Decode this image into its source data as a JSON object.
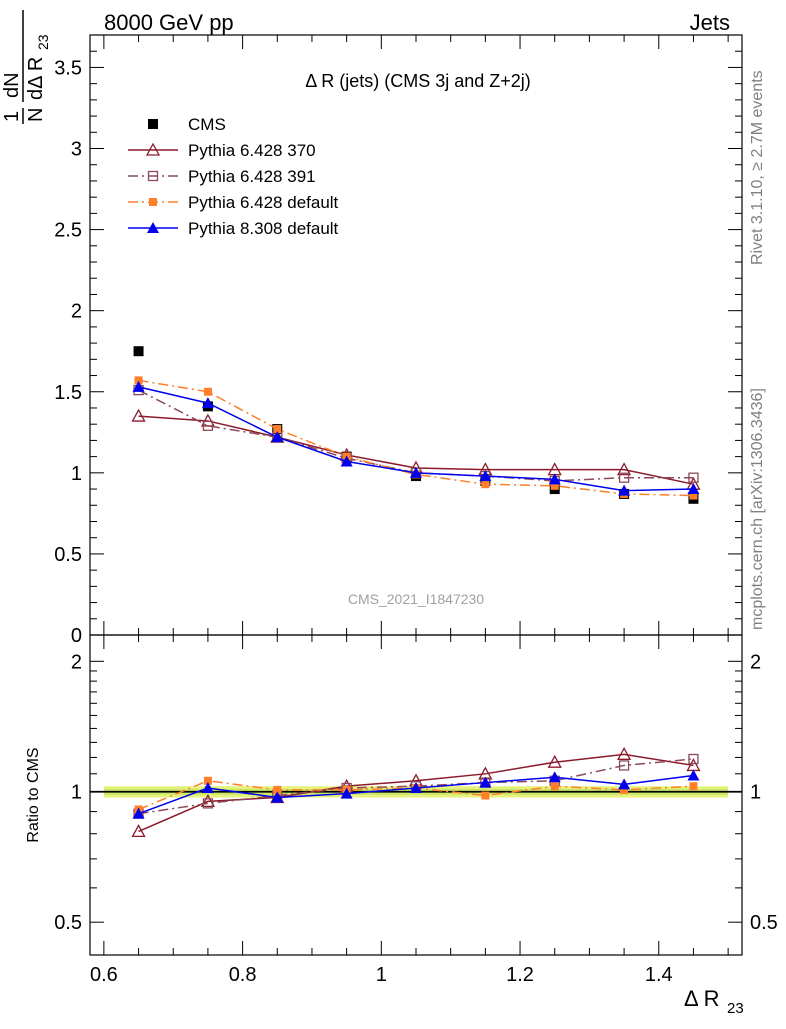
{
  "header": {
    "left": "8000 GeV pp",
    "right": "Jets"
  },
  "side_labels": {
    "rivet": "Rivet 3.1.10, ≥ 2.7M events",
    "mcplots": "mcplots.cern.ch [arXiv:1306.3436]"
  },
  "chart_data": [
    {
      "type": "line",
      "panel": "main",
      "title": "Δ R (jets) (CMS 3j and Z+2j)",
      "watermark": "CMS_2021_I1847230",
      "ylabel": "1/N dN/dΔ R23",
      "ylim": [
        0,
        3.7
      ],
      "xlim": [
        0.58,
        1.52
      ],
      "yticks": [
        0,
        0.5,
        1,
        1.5,
        2,
        2.5,
        3,
        3.5
      ],
      "ytick_labels": [
        "0",
        "0.5",
        "1",
        "1.5",
        "2",
        "2.5",
        "3",
        "3.5"
      ],
      "x": [
        0.65,
        0.75,
        0.85,
        0.95,
        1.05,
        1.15,
        1.25,
        1.35,
        1.45
      ],
      "legend_position": "top-left",
      "series": [
        {
          "name": "CMS",
          "color": "#000000",
          "marker": "filled-square",
          "line": "none",
          "values": [
            1.75,
            1.41,
            1.27,
            1.1,
            0.98,
            0.95,
            0.9,
            0.87,
            0.84
          ]
        },
        {
          "name": "Pythia 6.428 370",
          "color": "#8b1a2b",
          "marker": "open-triangle",
          "line": "solid",
          "values": [
            1.35,
            1.32,
            1.22,
            1.11,
            1.03,
            1.02,
            1.02,
            1.02,
            0.93
          ]
        },
        {
          "name": "Pythia 6.428 391",
          "color": "#8a4a5a",
          "marker": "open-square",
          "line": "dashdot",
          "values": [
            1.51,
            1.29,
            1.22,
            1.09,
            1.0,
            0.98,
            0.95,
            0.97,
            0.97
          ]
        },
        {
          "name": "Pythia 6.428 default",
          "color": "#ff7f2a",
          "marker": "filled-square-small",
          "line": "dashdot",
          "values": [
            1.57,
            1.5,
            1.27,
            1.1,
            0.99,
            0.93,
            0.92,
            0.87,
            0.86
          ]
        },
        {
          "name": "Pythia 8.308 default",
          "color": "#0000ee",
          "marker": "filled-triangle",
          "line": "solid",
          "values": [
            1.53,
            1.43,
            1.22,
            1.07,
            1.0,
            0.98,
            0.96,
            0.89,
            0.9
          ]
        }
      ]
    },
    {
      "type": "line",
      "panel": "ratio",
      "ylabel": "Ratio to CMS",
      "xlabel": "Δ R23",
      "ylim": [
        0.42,
        2.3
      ],
      "log_y": true,
      "xlim": [
        0.58,
        1.52
      ],
      "yticks": [
        0.5,
        1,
        2
      ],
      "ytick_labels": [
        "0.5",
        "1",
        "2"
      ],
      "xticks": [
        0.6,
        0.8,
        1.0,
        1.2,
        1.4
      ],
      "xtick_labels": [
        "0.6",
        "0.8",
        "1",
        "1.2",
        "1.4"
      ],
      "x": [
        0.65,
        0.75,
        0.85,
        0.95,
        1.05,
        1.15,
        1.25,
        1.35,
        1.45
      ],
      "band": {
        "color": "#e6f27a",
        "inner_color": "#b8e060",
        "half_width": 0.03
      },
      "series": [
        {
          "name": "Pythia 6.428 370",
          "color": "#8b1a2b",
          "marker": "open-triangle",
          "line": "solid",
          "values": [
            0.81,
            0.95,
            0.97,
            1.03,
            1.06,
            1.1,
            1.17,
            1.22,
            1.15
          ]
        },
        {
          "name": "Pythia 6.428 391",
          "color": "#8a4a5a",
          "marker": "open-square",
          "line": "dashdot",
          "values": [
            0.89,
            0.94,
            0.98,
            1.02,
            1.03,
            1.05,
            1.06,
            1.15,
            1.19
          ]
        },
        {
          "name": "Pythia 6.428 default",
          "color": "#ff7f2a",
          "marker": "filled-square-small",
          "line": "dashdot",
          "values": [
            0.91,
            1.06,
            1.01,
            1.01,
            1.02,
            0.98,
            1.03,
            1.01,
            1.03
          ]
        },
        {
          "name": "Pythia 8.308 default",
          "color": "#0000ee",
          "marker": "filled-triangle",
          "line": "solid",
          "values": [
            0.89,
            1.02,
            0.97,
            0.99,
            1.02,
            1.05,
            1.08,
            1.04,
            1.09
          ]
        }
      ]
    }
  ]
}
